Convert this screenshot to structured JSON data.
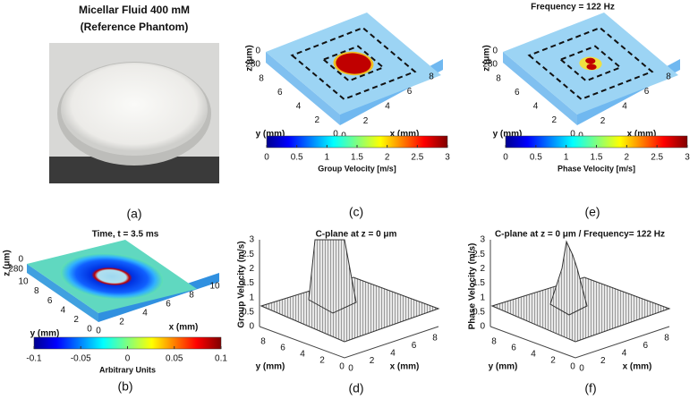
{
  "a": {
    "title_lines": [
      "Micellar Fluid 400 mM",
      "(Reference Phantom)"
    ],
    "label": "(a)"
  },
  "b": {
    "title": "Time, t = 3.5 ms",
    "z_label": "z (μm)",
    "z_ticks": [
      0,
      280
    ],
    "y_label": "y (mm)",
    "y_ticks": [
      10,
      8,
      6,
      4,
      2,
      0
    ],
    "x_label": "x (mm)",
    "x_ticks": [
      0,
      2,
      4,
      6,
      8,
      10
    ],
    "colorbar_ticks": [
      -0.1,
      -0.05,
      0,
      0.05,
      0.1
    ],
    "colorbar_label": "Arbitrary Units",
    "label": "(b)"
  },
  "c": {
    "z_label": "z (μm)",
    "z_ticks": [
      0,
      280
    ],
    "y_label": "y (mm)",
    "y_ticks": [
      8,
      6,
      4,
      2,
      0
    ],
    "x_label": "x (mm)",
    "x_ticks": [
      0,
      2,
      4,
      6,
      8
    ],
    "colorbar_ticks": [
      0,
      0.5,
      1,
      1.5,
      2,
      2.5,
      3
    ],
    "colorbar_label": "Group Velocity [m/s]",
    "label": "(c)"
  },
  "d": {
    "title": "C-plane at z = 0 μm",
    "z_label": "Group Velocity (m/s)",
    "z_ticks": [
      0,
      0.5,
      1,
      1.5,
      2,
      2.5,
      3
    ],
    "y_label": "y (mm)",
    "y_ticks": [
      8,
      6,
      4,
      2,
      0
    ],
    "x_label": "x (mm)",
    "x_ticks": [
      0,
      2,
      4,
      6,
      8
    ],
    "label": "(d)"
  },
  "e": {
    "title": "Frequency = 122 Hz",
    "z_label": "z (μm)",
    "z_ticks": [
      0,
      280
    ],
    "y_label": "y (mm)",
    "y_ticks": [
      8,
      6,
      4,
      2,
      0
    ],
    "x_label": "x (mm)",
    "x_ticks": [
      0,
      2,
      4,
      6,
      8
    ],
    "colorbar_ticks": [
      0,
      0.5,
      1,
      1.5,
      2,
      2.5,
      3
    ],
    "colorbar_label": "Phase Velocity [m/s]",
    "label": "(e)"
  },
  "f": {
    "title": "C-plane at z = 0 μm / Frequency= 122 Hz",
    "z_label": "Phase Velocity (m/s)",
    "z_ticks": [
      0,
      0.5,
      1,
      1.5,
      2,
      2.5,
      3
    ],
    "y_label": "y (mm)",
    "y_ticks": [
      8,
      6,
      4,
      2,
      0
    ],
    "x_label": "x (mm)",
    "x_ticks": [
      0,
      2,
      4,
      6,
      8
    ],
    "label": "(f)"
  }
}
